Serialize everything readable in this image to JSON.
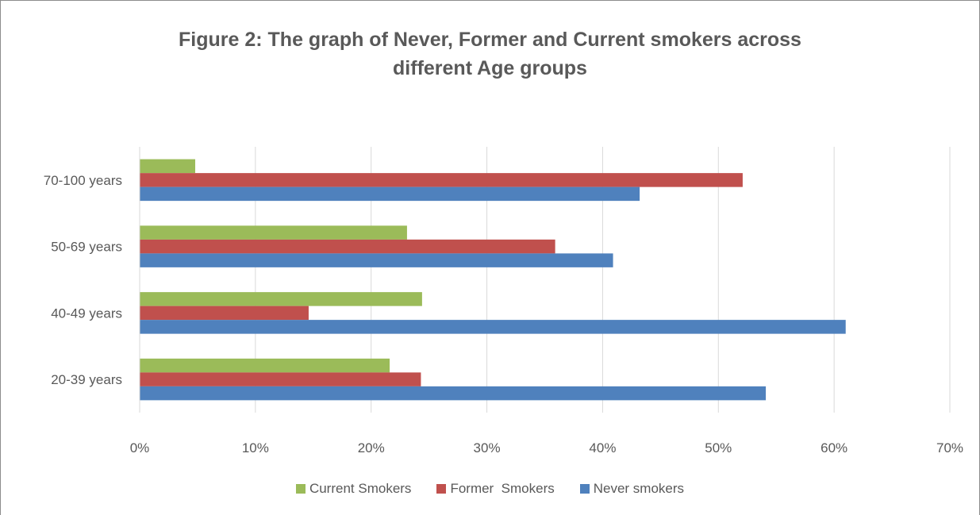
{
  "chart_data": {
    "type": "bar",
    "orientation": "horizontal",
    "title_lines": [
      "Figure 2: The graph of Never, Former and Current smokers across",
      "different Age groups"
    ],
    "categories": [
      "70-100 years",
      "50-69 years",
      "40-49 years",
      "20-39 years"
    ],
    "series": [
      {
        "name": "Current Smokers",
        "color": "#9bbb59",
        "values": [
          4.8,
          23.1,
          24.4,
          21.6
        ]
      },
      {
        "name": "Former  Smokers",
        "color": "#c0504d",
        "values": [
          52.1,
          35.9,
          14.6,
          24.3
        ]
      },
      {
        "name": "Never smokers",
        "color": "#4f81bd",
        "values": [
          43.2,
          40.9,
          61.0,
          54.1
        ]
      }
    ],
    "xlim": [
      0,
      70
    ],
    "x_ticks": [
      "0%",
      "10%",
      "20%",
      "30%",
      "40%",
      "50%",
      "60%",
      "70%"
    ],
    "x_tick_values": [
      0,
      10,
      20,
      30,
      40,
      50,
      60,
      70
    ],
    "grid": true,
    "legend_position": "bottom"
  }
}
